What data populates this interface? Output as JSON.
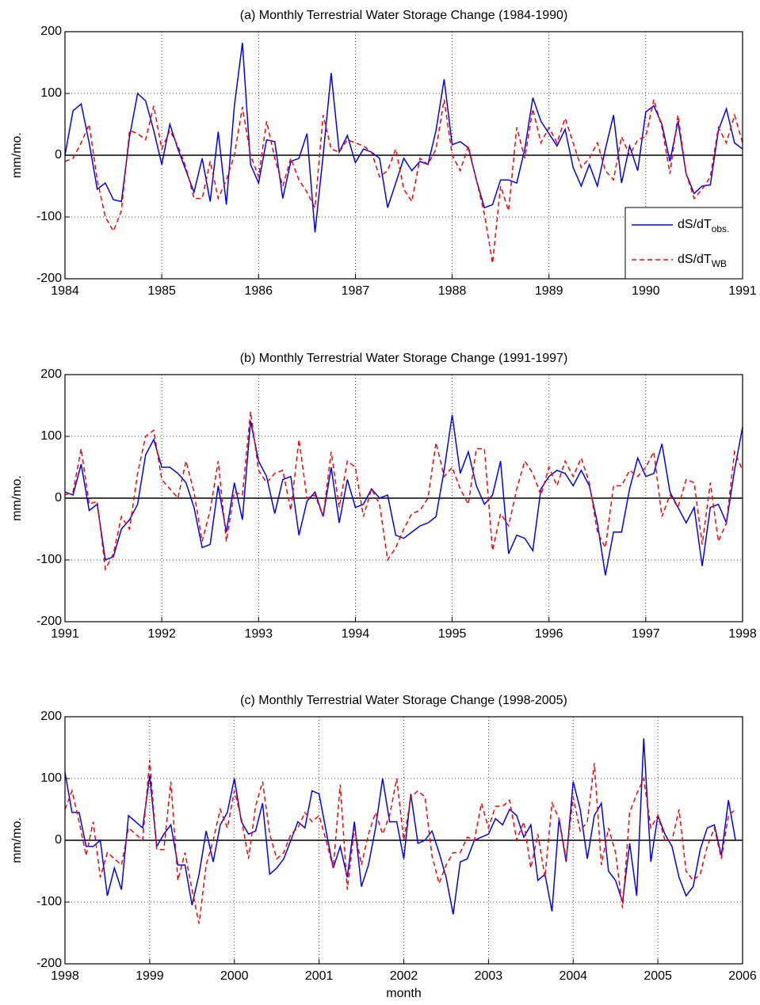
{
  "chart_data": [
    {
      "type": "line",
      "title": "(a) Monthly Terrestrial Water Storage Change (1984-1990)",
      "ylabel": "mm/mo.",
      "x": [
        1984,
        1984.083,
        1984.167,
        1984.25,
        1984.333,
        1984.417,
        1984.5,
        1984.583,
        1984.667,
        1984.75,
        1984.833,
        1984.917,
        1985,
        1985.083,
        1985.167,
        1985.25,
        1985.333,
        1985.417,
        1985.5,
        1985.583,
        1985.667,
        1985.75,
        1985.833,
        1985.917,
        1986,
        1986.083,
        1986.167,
        1986.25,
        1986.333,
        1986.417,
        1986.5,
        1986.583,
        1986.667,
        1986.75,
        1986.833,
        1986.917,
        1987,
        1987.083,
        1987.167,
        1987.25,
        1987.333,
        1987.417,
        1987.5,
        1987.583,
        1987.667,
        1987.75,
        1987.833,
        1987.917,
        1988,
        1988.083,
        1988.167,
        1988.25,
        1988.333,
        1988.417,
        1988.5,
        1988.583,
        1988.667,
        1988.75,
        1988.833,
        1988.917,
        1989,
        1989.083,
        1989.167,
        1989.25,
        1989.333,
        1989.417,
        1989.5,
        1989.583,
        1989.667,
        1989.75,
        1989.833,
        1989.917,
        1990,
        1990.083,
        1990.167,
        1990.25,
        1990.333,
        1990.417,
        1990.5,
        1990.583,
        1990.667,
        1990.75,
        1990.833,
        1990.917,
        1991
      ],
      "series": [
        {
          "name": "dS/dT",
          "name_sub": "obs.",
          "color": "#0000ff",
          "linestyle": "solid",
          "values": [
            0,
            72,
            83,
            20,
            -55,
            -45,
            -72,
            -75,
            30,
            100,
            88,
            40,
            -15,
            50,
            10,
            -25,
            -60,
            -5,
            -75,
            38,
            -80,
            80,
            182,
            -15,
            -45,
            25,
            22,
            -70,
            -10,
            -5,
            35,
            -125,
            0,
            133,
            5,
            32,
            -12,
            10,
            5,
            -5,
            -85,
            -45,
            -5,
            -25,
            -10,
            -15,
            40,
            123,
            17,
            22,
            12,
            -40,
            -85,
            -80,
            -40,
            -40,
            -45,
            10,
            93,
            55,
            35,
            15,
            42,
            -20,
            -50,
            -15,
            -50,
            10,
            65,
            -45,
            15,
            -25,
            70,
            80,
            50,
            -10,
            55,
            -30,
            -62,
            -50,
            -48,
            40,
            75,
            20,
            10
          ]
        },
        {
          "name": "dS/dT",
          "name_sub": "WB",
          "color": "#ff0000",
          "linestyle": "dashed",
          "values": [
            -10,
            -5,
            20,
            50,
            -40,
            -100,
            -123,
            -90,
            40,
            35,
            25,
            80,
            10,
            40,
            15,
            -20,
            -70,
            -70,
            -10,
            -70,
            -40,
            0,
            78,
            0,
            -35,
            55,
            -5,
            -50,
            -5,
            -40,
            -60,
            -85,
            65,
            10,
            5,
            25,
            20,
            15,
            5,
            -35,
            -25,
            10,
            -55,
            -75,
            -5,
            -15,
            10,
            90,
            0,
            -25,
            15,
            -40,
            -95,
            -175,
            -50,
            -90,
            45,
            -5,
            75,
            20,
            45,
            20,
            60,
            20,
            -20,
            -5,
            20,
            -25,
            -40,
            30,
            0,
            25,
            30,
            90,
            45,
            -30,
            65,
            -30,
            -70,
            -55,
            -35,
            45,
            20,
            65,
            20
          ]
        }
      ],
      "xlim": [
        1984,
        1991
      ],
      "xticks": [
        1984,
        1985,
        1986,
        1987,
        1988,
        1989,
        1990,
        1991
      ],
      "ylim": [
        -200,
        200
      ],
      "yticks": [
        -200,
        -100,
        0,
        100,
        200
      ],
      "grid": true,
      "legend": "lower right"
    },
    {
      "type": "line",
      "title": "(b) Monthly Terrestrial Water Storage Change (1991-1997)",
      "ylabel": "mm/mo.",
      "x": [
        1991,
        1991.083,
        1991.167,
        1991.25,
        1991.333,
        1991.417,
        1991.5,
        1991.583,
        1991.667,
        1991.75,
        1991.833,
        1991.917,
        1992,
        1992.083,
        1992.167,
        1992.25,
        1992.333,
        1992.417,
        1992.5,
        1992.583,
        1992.667,
        1992.75,
        1992.833,
        1992.917,
        1993,
        1993.083,
        1993.167,
        1993.25,
        1993.333,
        1993.417,
        1993.5,
        1993.583,
        1993.667,
        1993.75,
        1993.833,
        1993.917,
        1994,
        1994.083,
        1994.167,
        1994.25,
        1994.333,
        1994.417,
        1994.5,
        1994.583,
        1994.667,
        1994.75,
        1994.833,
        1994.917,
        1995,
        1995.083,
        1995.167,
        1995.25,
        1995.333,
        1995.417,
        1995.5,
        1995.583,
        1995.667,
        1995.75,
        1995.833,
        1995.917,
        1996,
        1996.083,
        1996.167,
        1996.25,
        1996.333,
        1996.417,
        1996.5,
        1996.583,
        1996.667,
        1996.75,
        1996.833,
        1996.917,
        1997,
        1997.083,
        1997.167,
        1997.25,
        1997.333,
        1997.417,
        1997.5,
        1997.583,
        1997.667,
        1997.75,
        1997.833,
        1997.917,
        1998
      ],
      "series": [
        {
          "name": "dS/dT",
          "name_sub": "obs.",
          "color": "#0000ff",
          "linestyle": "solid",
          "values": [
            10,
            5,
            55,
            -20,
            -10,
            -100,
            -95,
            -50,
            -35,
            -10,
            70,
            95,
            50,
            50,
            40,
            25,
            -15,
            -80,
            -75,
            20,
            -55,
            25,
            -35,
            125,
            60,
            35,
            -25,
            30,
            35,
            -60,
            -5,
            10,
            -30,
            50,
            -40,
            30,
            -15,
            -10,
            15,
            0,
            5,
            -60,
            -65,
            -55,
            -45,
            -40,
            -30,
            45,
            135,
            40,
            75,
            20,
            -10,
            5,
            60,
            -90,
            -60,
            -65,
            -85,
            15,
            35,
            45,
            40,
            20,
            45,
            20,
            -40,
            -125,
            -55,
            -55,
            15,
            65,
            35,
            40,
            88,
            10,
            -15,
            -40,
            -15,
            -110,
            -15,
            -10,
            -40,
            45,
            115
          ]
        },
        {
          "name": "dS/dT",
          "name_sub": "WB",
          "color": "#ff0000",
          "linestyle": "dashed",
          "values": [
            5,
            10,
            80,
            -10,
            -5,
            -115,
            -90,
            -30,
            -50,
            40,
            100,
            110,
            30,
            15,
            0,
            60,
            10,
            -70,
            -20,
            60,
            -70,
            10,
            5,
            140,
            45,
            25,
            40,
            45,
            -20,
            95,
            0,
            5,
            -30,
            75,
            -15,
            60,
            50,
            -30,
            15,
            -10,
            -100,
            -80,
            -50,
            -25,
            -20,
            0,
            90,
            35,
            50,
            15,
            -10,
            80,
            80,
            -85,
            -25,
            -45,
            15,
            60,
            40,
            5,
            50,
            20,
            60,
            35,
            65,
            25,
            -55,
            -80,
            20,
            20,
            45,
            35,
            50,
            75,
            -30,
            5,
            -15,
            30,
            25,
            -75,
            25,
            -70,
            -40,
            75,
            45
          ]
        }
      ],
      "xlim": [
        1991,
        1998
      ],
      "xticks": [
        1991,
        1992,
        1993,
        1994,
        1995,
        1996,
        1997,
        1998
      ],
      "ylim": [
        -200,
        200
      ],
      "yticks": [
        -200,
        -100,
        0,
        100,
        200
      ],
      "grid": true
    },
    {
      "type": "line",
      "title": "(c) Monthly Terrestrial Water Storage Change (1998-2005)",
      "ylabel": "mm/mo.",
      "xlabel": "month",
      "x": [
        1998,
        1998.083,
        1998.167,
        1998.25,
        1998.333,
        1998.417,
        1998.5,
        1998.583,
        1998.667,
        1998.75,
        1998.833,
        1998.917,
        1999,
        1999.083,
        1999.167,
        1999.25,
        1999.333,
        1999.417,
        1999.5,
        1999.583,
        1999.667,
        1999.75,
        1999.833,
        1999.917,
        2000,
        2000.083,
        2000.167,
        2000.25,
        2000.333,
        2000.417,
        2000.5,
        2000.583,
        2000.667,
        2000.75,
        2000.833,
        2000.917,
        2001,
        2001.083,
        2001.167,
        2001.25,
        2001.333,
        2001.417,
        2001.5,
        2001.583,
        2001.667,
        2001.75,
        2001.833,
        2001.917,
        2002,
        2002.083,
        2002.167,
        2002.25,
        2002.333,
        2002.417,
        2002.5,
        2002.583,
        2002.667,
        2002.75,
        2002.833,
        2002.917,
        2003,
        2003.083,
        2003.167,
        2003.25,
        2003.333,
        2003.417,
        2003.5,
        2003.583,
        2003.667,
        2003.75,
        2003.833,
        2003.917,
        2004,
        2004.083,
        2004.167,
        2004.25,
        2004.333,
        2004.417,
        2004.5,
        2004.583,
        2004.667,
        2004.75,
        2004.833,
        2004.917,
        2005,
        2005.083,
        2005.167,
        2005.25,
        2005.333,
        2005.417,
        2005.5,
        2005.583,
        2005.667,
        2005.75,
        2005.833,
        2005.917
      ],
      "series": [
        {
          "name": "dS/dT",
          "name_sub": "obs.",
          "color": "#0000ff",
          "linestyle": "solid",
          "values": [
            110,
            45,
            45,
            -10,
            -10,
            0,
            -90,
            -45,
            -80,
            40,
            30,
            20,
            105,
            -10,
            10,
            25,
            -40,
            -40,
            -105,
            -55,
            15,
            -35,
            25,
            45,
            100,
            30,
            10,
            15,
            60,
            -55,
            -45,
            -30,
            0,
            30,
            20,
            80,
            75,
            15,
            -45,
            -10,
            -60,
            30,
            -75,
            -40,
            20,
            100,
            30,
            30,
            -30,
            75,
            -5,
            0,
            15,
            -20,
            -60,
            -120,
            -35,
            -30,
            0,
            5,
            10,
            35,
            25,
            50,
            40,
            5,
            25,
            -65,
            -55,
            -115,
            35,
            -35,
            95,
            50,
            -30,
            40,
            60,
            -50,
            -65,
            -100,
            -5,
            -90,
            165,
            -35,
            40,
            10,
            -10,
            -60,
            -90,
            -75,
            -15,
            20,
            25,
            -25,
            65,
            0
          ]
        },
        {
          "name": "dS/dT",
          "name_sub": "WB",
          "color": "#ff0000",
          "linestyle": "dashed",
          "values": [
            50,
            80,
            30,
            -25,
            30,
            -60,
            -20,
            -30,
            -40,
            20,
            10,
            0,
            130,
            -15,
            -15,
            95,
            -65,
            -20,
            -80,
            -135,
            -40,
            0,
            50,
            20,
            80,
            35,
            -30,
            55,
            95,
            10,
            -30,
            -20,
            10,
            20,
            45,
            30,
            40,
            0,
            -45,
            90,
            -80,
            20,
            -40,
            10,
            45,
            10,
            40,
            100,
            0,
            70,
            80,
            70,
            -25,
            -70,
            -40,
            -20,
            -20,
            5,
            0,
            60,
            20,
            55,
            55,
            65,
            0,
            30,
            -45,
            10,
            -60,
            60,
            35,
            -30,
            70,
            15,
            30,
            125,
            -40,
            20,
            -20,
            -110,
            45,
            75,
            100,
            20,
            40,
            0,
            0,
            50,
            -50,
            -65,
            -55,
            -10,
            20,
            -30,
            40,
            50
          ]
        }
      ],
      "xlim": [
        1998,
        2006
      ],
      "xticks": [
        1998,
        1999,
        2000,
        2001,
        2002,
        2003,
        2004,
        2005,
        2006
      ],
      "ylim": [
        -200,
        200
      ],
      "yticks": [
        -200,
        -100,
        0,
        100,
        200
      ],
      "grid": true
    }
  ]
}
